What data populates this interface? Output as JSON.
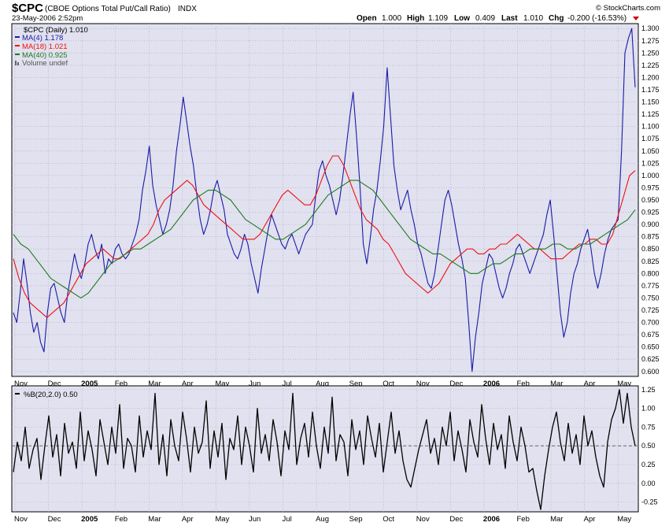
{
  "header": {
    "symbol": "$CPC",
    "name": "(CBOE Options Total Put/Call Ratio)",
    "exchange": "INDX",
    "brand": "© StockCharts.com",
    "date": "23-May-2006 2:52pm",
    "quote": {
      "open_label": "Open",
      "open": "1.000",
      "high_label": "High",
      "high": "1.109",
      "low_label": "Low",
      "low": "0.409",
      "last_label": "Last",
      "last": "1.010",
      "chg_label": "Chg",
      "chg": "-0.200 (-16.53%)"
    }
  },
  "legend": {
    "title": "$CPC (Daily) 1.010",
    "items": [
      {
        "label": "MA(4) 1.178",
        "color": "#1a1aa8"
      },
      {
        "label": "MA(18) 1.021",
        "color": "#ee1111"
      },
      {
        "label": "MA(40) 0.925",
        "color": "#1b7a1b"
      },
      {
        "label": "Volume undef",
        "color": "#666666"
      }
    ]
  },
  "lower_legend": {
    "label": "%B(20,2.0) 0.50"
  },
  "colors": {
    "plot_bg": "#e1e1ef",
    "grid": "#a8a8c0",
    "ma4": "#1a1aa8",
    "ma18": "#ee1111",
    "ma40": "#1b7a1b",
    "pctb": "#000000"
  },
  "chart_data": [
    {
      "type": "line",
      "title": "$CPC (Daily) 1.010",
      "x_labels": [
        "Nov",
        "Dec",
        "2005",
        "Feb",
        "Mar",
        "Apr",
        "May",
        "Jun",
        "Jul",
        "Aug",
        "Sep",
        "Oct",
        "Nov",
        "Dec",
        "2006",
        "Feb",
        "Mar",
        "Apr",
        "May"
      ],
      "y_ticks": [
        "0.600",
        "0.625",
        "0.650",
        "0.675",
        "0.700",
        "0.725",
        "0.750",
        "0.775",
        "0.800",
        "0.825",
        "0.850",
        "0.875",
        "0.900",
        "0.925",
        "0.950",
        "0.975",
        "1.000",
        "1.025",
        "1.050",
        "1.075",
        "1.100",
        "1.125",
        "1.150",
        "1.175",
        "1.200",
        "1.225",
        "1.250",
        "1.275",
        "1.300"
      ],
      "ylim": [
        0.59,
        1.31
      ],
      "grid": true,
      "legend_position": "top-left",
      "series": [
        {
          "name": "MA(4)",
          "color": "#1a1aa8",
          "values": [
            0.72,
            0.7,
            0.76,
            0.83,
            0.78,
            0.72,
            0.68,
            0.7,
            0.66,
            0.64,
            0.72,
            0.77,
            0.78,
            0.75,
            0.72,
            0.7,
            0.76,
            0.8,
            0.84,
            0.81,
            0.79,
            0.82,
            0.86,
            0.88,
            0.85,
            0.83,
            0.86,
            0.8,
            0.83,
            0.82,
            0.85,
            0.86,
            0.84,
            0.83,
            0.84,
            0.86,
            0.88,
            0.91,
            0.97,
            1.01,
            1.06,
            0.98,
            0.94,
            0.91,
            0.88,
            0.9,
            0.93,
            0.98,
            1.05,
            1.1,
            1.16,
            1.11,
            1.06,
            1.02,
            0.96,
            0.91,
            0.88,
            0.9,
            0.93,
            0.97,
            0.99,
            0.96,
            0.93,
            0.88,
            0.86,
            0.84,
            0.83,
            0.85,
            0.88,
            0.86,
            0.82,
            0.79,
            0.76,
            0.81,
            0.85,
            0.89,
            0.92,
            0.9,
            0.88,
            0.86,
            0.85,
            0.87,
            0.88,
            0.86,
            0.84,
            0.86,
            0.88,
            0.89,
            0.9,
            0.96,
            1.01,
            1.03,
            1.0,
            0.98,
            0.95,
            0.92,
            0.95,
            1.0,
            1.06,
            1.12,
            1.17,
            1.08,
            0.98,
            0.86,
            0.82,
            0.87,
            0.93,
            0.97,
            1.03,
            1.1,
            1.22,
            1.12,
            1.02,
            0.97,
            0.93,
            0.95,
            0.97,
            0.93,
            0.9,
            0.86,
            0.84,
            0.81,
            0.78,
            0.77,
            0.8,
            0.85,
            0.9,
            0.95,
            0.97,
            0.94,
            0.9,
            0.86,
            0.83,
            0.79,
            0.7,
            0.6,
            0.67,
            0.72,
            0.78,
            0.81,
            0.84,
            0.83,
            0.8,
            0.77,
            0.75,
            0.77,
            0.8,
            0.82,
            0.85,
            0.86,
            0.84,
            0.82,
            0.8,
            0.82,
            0.84,
            0.86,
            0.88,
            0.92,
            0.95,
            0.88,
            0.8,
            0.72,
            0.67,
            0.7,
            0.76,
            0.8,
            0.82,
            0.85,
            0.87,
            0.89,
            0.85,
            0.8,
            0.77,
            0.8,
            0.84,
            0.87,
            0.89,
            0.9,
            0.91,
            1.05,
            1.25,
            1.28,
            1.3,
            1.18
          ]
        },
        {
          "name": "MA(18)",
          "color": "#ee1111",
          "values": [
            0.83,
            0.79,
            0.76,
            0.74,
            0.73,
            0.72,
            0.71,
            0.72,
            0.73,
            0.74,
            0.76,
            0.78,
            0.8,
            0.82,
            0.83,
            0.84,
            0.85,
            0.84,
            0.83,
            0.83,
            0.84,
            0.85,
            0.86,
            0.87,
            0.88,
            0.9,
            0.93,
            0.95,
            0.96,
            0.97,
            0.98,
            0.99,
            0.98,
            0.96,
            0.94,
            0.93,
            0.92,
            0.91,
            0.9,
            0.89,
            0.88,
            0.87,
            0.87,
            0.87,
            0.88,
            0.9,
            0.92,
            0.94,
            0.96,
            0.97,
            0.96,
            0.95,
            0.94,
            0.94,
            0.96,
            0.99,
            1.02,
            1.04,
            1.04,
            1.02,
            0.99,
            0.96,
            0.93,
            0.91,
            0.9,
            0.89,
            0.87,
            0.86,
            0.84,
            0.82,
            0.8,
            0.79,
            0.78,
            0.77,
            0.76,
            0.77,
            0.78,
            0.8,
            0.82,
            0.83,
            0.84,
            0.85,
            0.85,
            0.84,
            0.84,
            0.85,
            0.85,
            0.86,
            0.86,
            0.87,
            0.88,
            0.87,
            0.86,
            0.85,
            0.85,
            0.84,
            0.83,
            0.83,
            0.83,
            0.84,
            0.85,
            0.86,
            0.86,
            0.87,
            0.87,
            0.86,
            0.86,
            0.88,
            0.92,
            0.96,
            1.0,
            1.01
          ]
        },
        {
          "name": "MA(40)",
          "color": "#1b7a1b",
          "values": [
            0.88,
            0.86,
            0.85,
            0.83,
            0.81,
            0.79,
            0.78,
            0.77,
            0.76,
            0.75,
            0.76,
            0.78,
            0.8,
            0.82,
            0.83,
            0.84,
            0.85,
            0.85,
            0.86,
            0.87,
            0.88,
            0.89,
            0.91,
            0.93,
            0.95,
            0.96,
            0.97,
            0.97,
            0.96,
            0.95,
            0.93,
            0.91,
            0.9,
            0.89,
            0.88,
            0.87,
            0.87,
            0.88,
            0.89,
            0.9,
            0.92,
            0.94,
            0.96,
            0.97,
            0.98,
            0.99,
            0.99,
            0.98,
            0.97,
            0.95,
            0.93,
            0.91,
            0.89,
            0.87,
            0.86,
            0.85,
            0.84,
            0.84,
            0.83,
            0.82,
            0.81,
            0.8,
            0.8,
            0.81,
            0.82,
            0.82,
            0.83,
            0.84,
            0.84,
            0.85,
            0.85,
            0.85,
            0.86,
            0.86,
            0.85,
            0.85,
            0.86,
            0.86,
            0.87,
            0.88,
            0.89,
            0.9,
            0.91,
            0.93
          ]
        }
      ]
    },
    {
      "type": "line",
      "title": "%B(20,2.0) 0.50",
      "x_labels": [
        "Nov",
        "Dec",
        "2005",
        "Feb",
        "Mar",
        "Apr",
        "May",
        "Jun",
        "Jul",
        "Aug",
        "Sep",
        "Oct",
        "Nov",
        "Dec",
        "2006",
        "Feb",
        "Mar",
        "Apr",
        "May"
      ],
      "y_ticks": [
        "-0.25",
        "0.00",
        "0.25",
        "0.50",
        "0.75",
        "1.00",
        "1.25"
      ],
      "ylim": [
        -0.38,
        1.3
      ],
      "reference_line": 0.5,
      "series": [
        {
          "name": "%B(20,2.0)",
          "color": "#000000",
          "values": [
            0.15,
            0.55,
            0.3,
            0.75,
            0.2,
            0.45,
            0.6,
            0.05,
            0.5,
            0.9,
            0.35,
            0.65,
            0.1,
            0.8,
            0.4,
            0.55,
            0.2,
            0.95,
            0.3,
            0.7,
            0.45,
            0.1,
            0.85,
            0.55,
            0.25,
            0.75,
            0.4,
            1.05,
            0.2,
            0.6,
            0.5,
            0.15,
            0.9,
            0.35,
            0.7,
            0.45,
            1.2,
            0.25,
            0.65,
            0.1,
            0.85,
            0.5,
            0.3,
            0.95,
            0.6,
            0.15,
            0.75,
            0.4,
            0.55,
            1.1,
            0.2,
            0.7,
            0.35,
            0.8,
            0.05,
            0.6,
            0.45,
            0.9,
            0.25,
            0.75,
            0.5,
            0.15,
            1.0,
            0.4,
            0.65,
            0.3,
            0.85,
            0.55,
            0.1,
            0.7,
            0.45,
            1.2,
            0.25,
            0.6,
            0.8,
            0.35,
            0.95,
            0.5,
            0.2,
            0.75,
            0.4,
            1.15,
            0.3,
            0.65,
            0.55,
            0.1,
            0.85,
            0.45,
            0.7,
            0.25,
            0.9,
            0.6,
            0.35,
            0.8,
            0.15,
            0.55,
            0.95,
            0.4,
            0.7,
            0.3,
            0.05,
            -0.05,
            0.2,
            0.45,
            0.65,
            0.85,
            0.4,
            0.6,
            0.25,
            0.75,
            0.5,
            0.95,
            0.3,
            0.7,
            0.45,
            0.15,
            0.85,
            0.55,
            0.35,
            1.05,
            0.6,
            0.25,
            0.8,
            0.45,
            0.65,
            0.2,
            0.9,
            0.55,
            0.3,
            0.75,
            0.5,
            0.15,
            0.2,
            -0.1,
            -0.35,
            0.1,
            0.45,
            0.75,
            0.95,
            0.55,
            0.3,
            0.8,
            0.4,
            0.65,
            0.25,
            0.9,
            0.5,
            0.7,
            0.35,
            0.1,
            -0.05,
            0.55,
            0.85,
            1.0,
            1.25,
            0.8,
            1.2,
            0.75,
            0.5
          ]
        }
      ]
    }
  ]
}
